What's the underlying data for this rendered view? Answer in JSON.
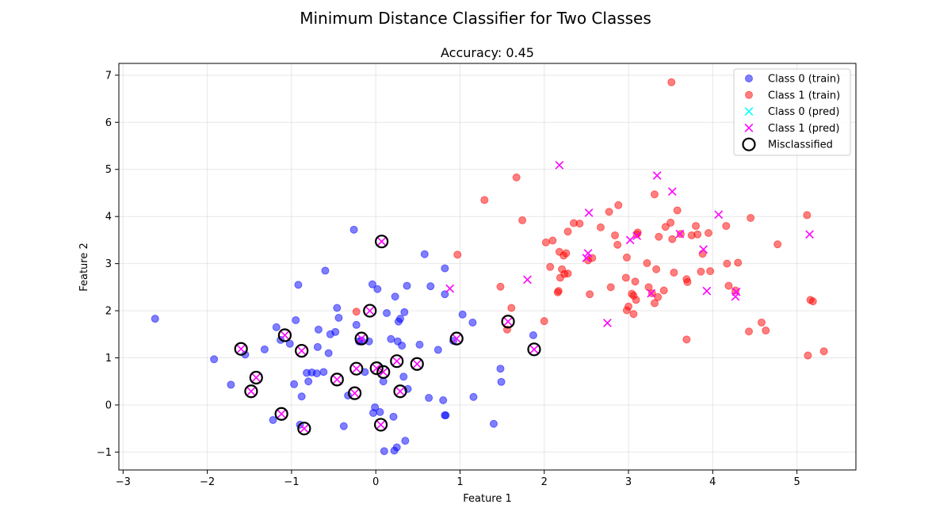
{
  "chart_data": {
    "type": "scatter",
    "title": "Minimum Distance Classifier for Two Classes",
    "subtitle": "Accuracy: 0.45",
    "xlabel": "Feature 1",
    "ylabel": "Feature 2",
    "xlim": [
      -3.05,
      5.7
    ],
    "ylim": [
      -1.38,
      7.25
    ],
    "xticks": [
      -3,
      -2,
      -1,
      0,
      1,
      2,
      3,
      4,
      5
    ],
    "yticks": [
      -1,
      0,
      1,
      2,
      3,
      4,
      5,
      6,
      7
    ],
    "grid": true,
    "legend_position": "top-right",
    "legend": [
      {
        "label": "Class 0 (train)",
        "marker": "circle",
        "color": "#0000ff"
      },
      {
        "label": "Class 1 (train)",
        "marker": "circle",
        "color": "#ff0000"
      },
      {
        "label": "Class 0 (pred)",
        "marker": "x",
        "color": "#00ffff"
      },
      {
        "label": "Class 1 (pred)",
        "marker": "x",
        "color": "#ff00ff"
      },
      {
        "label": "Misclassified",
        "marker": "ring",
        "color": "#000000"
      }
    ],
    "series": [
      {
        "name": "Class 0 (train)",
        "color": "#0000ff",
        "points": [
          [
            -2.62,
            1.83
          ],
          [
            -1.92,
            0.97
          ],
          [
            -1.72,
            0.43
          ],
          [
            -1.55,
            1.07
          ],
          [
            -1.32,
            1.18
          ],
          [
            -1.22,
            -0.32
          ],
          [
            -1.18,
            1.65
          ],
          [
            -1.13,
            1.38
          ],
          [
            -1.02,
            1.3
          ],
          [
            -0.97,
            0.44
          ],
          [
            -0.95,
            1.8
          ],
          [
            -0.92,
            2.55
          ],
          [
            -0.9,
            -0.42
          ],
          [
            -0.88,
            0.18
          ],
          [
            -0.82,
            0.68
          ],
          [
            -0.8,
            0.5
          ],
          [
            -0.76,
            0.69
          ],
          [
            -0.7,
            0.67
          ],
          [
            -0.69,
            1.23
          ],
          [
            -0.68,
            1.6
          ],
          [
            -0.62,
            0.7
          ],
          [
            -0.6,
            2.85
          ],
          [
            -0.56,
            1.1
          ],
          [
            -0.54,
            1.5
          ],
          [
            -0.48,
            1.55
          ],
          [
            -0.46,
            2.06
          ],
          [
            -0.44,
            1.85
          ],
          [
            -0.38,
            -0.45
          ],
          [
            -0.33,
            0.2
          ],
          [
            -0.26,
            3.72
          ],
          [
            -0.23,
            1.7
          ],
          [
            -0.2,
            1.35
          ],
          [
            -0.17,
            1.37
          ],
          [
            -0.13,
            0.7
          ],
          [
            -0.08,
            1.35
          ],
          [
            -0.04,
            2.56
          ],
          [
            -0.03,
            -0.17
          ],
          [
            -0.01,
            -0.05
          ],
          [
            0.02,
            2.46
          ],
          [
            0.05,
            -0.15
          ],
          [
            0.09,
            0.5
          ],
          [
            0.1,
            -0.98
          ],
          [
            0.13,
            1.95
          ],
          [
            0.18,
            1.4
          ],
          [
            0.21,
            -0.25
          ],
          [
            0.22,
            -0.97
          ],
          [
            0.23,
            2.3
          ],
          [
            0.25,
            -0.9
          ],
          [
            0.26,
            1.35
          ],
          [
            0.27,
            1.77
          ],
          [
            0.29,
            1.83
          ],
          [
            0.31,
            1.26
          ],
          [
            0.33,
            0.6
          ],
          [
            0.34,
            1.97
          ],
          [
            0.35,
            -0.76
          ],
          [
            0.37,
            2.53
          ],
          [
            0.38,
            0.34
          ],
          [
            0.52,
            1.28
          ],
          [
            0.58,
            3.2
          ],
          [
            0.63,
            0.15
          ],
          [
            0.65,
            2.52
          ],
          [
            0.74,
            1.17
          ],
          [
            0.8,
            0.1
          ],
          [
            0.82,
            2.9
          ],
          [
            0.82,
            2.35
          ],
          [
            0.82,
            -0.22
          ],
          [
            0.83,
            -0.22
          ],
          [
            0.92,
            1.36
          ],
          [
            1.03,
            1.92
          ],
          [
            1.15,
            1.75
          ],
          [
            1.16,
            0.17
          ],
          [
            1.4,
            -0.4
          ],
          [
            1.48,
            0.77
          ],
          [
            1.49,
            0.49
          ],
          [
            1.87,
            1.48
          ]
        ]
      },
      {
        "name": "Class 1 (train)",
        "color": "#ff0000",
        "points": [
          [
            -0.23,
            1.98
          ],
          [
            0.97,
            3.19
          ],
          [
            1.29,
            4.35
          ],
          [
            1.48,
            2.51
          ],
          [
            1.56,
            1.6
          ],
          [
            1.61,
            2.06
          ],
          [
            1.67,
            4.83
          ],
          [
            1.74,
            3.92
          ],
          [
            2.0,
            1.78
          ],
          [
            2.02,
            3.45
          ],
          [
            2.07,
            2.93
          ],
          [
            2.1,
            3.49
          ],
          [
            2.16,
            2.39
          ],
          [
            2.17,
            2.42
          ],
          [
            2.18,
            3.25
          ],
          [
            2.19,
            2.7
          ],
          [
            2.21,
            2.88
          ],
          [
            2.23,
            3.17
          ],
          [
            2.24,
            2.78
          ],
          [
            2.26,
            3.22
          ],
          [
            2.28,
            3.68
          ],
          [
            2.28,
            2.79
          ],
          [
            2.35,
            3.86
          ],
          [
            2.42,
            3.85
          ],
          [
            2.52,
            3.07
          ],
          [
            2.54,
            2.35
          ],
          [
            2.57,
            3.12
          ],
          [
            2.67,
            3.77
          ],
          [
            2.77,
            4.1
          ],
          [
            2.79,
            2.5
          ],
          [
            2.84,
            3.6
          ],
          [
            2.87,
            3.4
          ],
          [
            2.88,
            4.24
          ],
          [
            2.97,
            2.7
          ],
          [
            2.98,
            3.13
          ],
          [
            2.98,
            2.01
          ],
          [
            3.0,
            2.09
          ],
          [
            3.04,
            2.36
          ],
          [
            3.06,
            2.32
          ],
          [
            3.06,
            1.93
          ],
          [
            3.08,
            2.62
          ],
          [
            3.09,
            2.23
          ],
          [
            3.1,
            3.62
          ],
          [
            3.11,
            3.66
          ],
          [
            3.22,
            3.01
          ],
          [
            3.24,
            2.5
          ],
          [
            3.28,
            2.37
          ],
          [
            3.31,
            4.47
          ],
          [
            3.31,
            2.16
          ],
          [
            3.33,
            2.88
          ],
          [
            3.35,
            2.29
          ],
          [
            3.36,
            3.57
          ],
          [
            3.42,
            2.43
          ],
          [
            3.44,
            3.78
          ],
          [
            3.5,
            3.87
          ],
          [
            3.52,
            3.52
          ],
          [
            3.51,
            6.85
          ],
          [
            3.54,
            2.81
          ],
          [
            3.58,
            4.13
          ],
          [
            3.62,
            3.63
          ],
          [
            3.69,
            2.67
          ],
          [
            3.7,
            2.61
          ],
          [
            3.69,
            1.39
          ],
          [
            3.75,
            3.6
          ],
          [
            3.8,
            3.8
          ],
          [
            3.82,
            3.62
          ],
          [
            3.86,
            2.83
          ],
          [
            3.88,
            3.21
          ],
          [
            3.95,
            3.65
          ],
          [
            3.97,
            2.84
          ],
          [
            4.16,
            3.8
          ],
          [
            4.17,
            3.0
          ],
          [
            4.19,
            2.53
          ],
          [
            4.27,
            2.43
          ],
          [
            4.3,
            3.02
          ],
          [
            4.43,
            1.56
          ],
          [
            4.45,
            3.97
          ],
          [
            4.58,
            1.75
          ],
          [
            4.63,
            1.58
          ],
          [
            4.77,
            3.41
          ],
          [
            5.12,
            4.03
          ],
          [
            5.13,
            1.05
          ],
          [
            5.16,
            2.23
          ],
          [
            5.19,
            2.2
          ],
          [
            5.32,
            1.14
          ]
        ]
      },
      {
        "name": "Class 1 (pred)",
        "color": "#ff00ff",
        "points": [
          [
            -1.6,
            1.19
          ],
          [
            -1.48,
            0.29
          ],
          [
            -1.42,
            0.58
          ],
          [
            -1.12,
            -0.19
          ],
          [
            -1.08,
            1.48
          ],
          [
            -0.88,
            1.15
          ],
          [
            -0.85,
            -0.5
          ],
          [
            -0.46,
            0.54
          ],
          [
            -0.25,
            0.25
          ],
          [
            -0.23,
            0.77
          ],
          [
            -0.17,
            1.41
          ],
          [
            -0.07,
            2.0
          ],
          [
            0.01,
            0.78
          ],
          [
            0.06,
            -0.42
          ],
          [
            0.07,
            3.47
          ],
          [
            0.09,
            0.7
          ],
          [
            0.25,
            0.93
          ],
          [
            0.29,
            0.29
          ],
          [
            0.49,
            0.87
          ],
          [
            0.88,
            2.47
          ],
          [
            0.96,
            1.41
          ],
          [
            1.57,
            1.77
          ],
          [
            1.8,
            2.66
          ],
          [
            1.88,
            1.18
          ],
          [
            2.18,
            5.09
          ],
          [
            2.5,
            3.12
          ],
          [
            2.52,
            3.22
          ],
          [
            2.53,
            4.08
          ],
          [
            2.75,
            1.74
          ],
          [
            3.02,
            3.5
          ],
          [
            3.1,
            3.59
          ],
          [
            3.27,
            2.37
          ],
          [
            3.34,
            4.87
          ],
          [
            3.52,
            4.53
          ],
          [
            3.61,
            3.63
          ],
          [
            3.89,
            3.3
          ],
          [
            3.93,
            2.42
          ],
          [
            4.07,
            4.04
          ],
          [
            4.27,
            2.3
          ],
          [
            4.28,
            2.4
          ],
          [
            5.15,
            3.62
          ]
        ]
      },
      {
        "name": "Misclassified",
        "color": "#000000",
        "points": [
          [
            -1.6,
            1.19
          ],
          [
            -1.48,
            0.29
          ],
          [
            -1.42,
            0.58
          ],
          [
            -1.12,
            -0.19
          ],
          [
            -1.08,
            1.48
          ],
          [
            -0.88,
            1.15
          ],
          [
            -0.85,
            -0.5
          ],
          [
            -0.46,
            0.54
          ],
          [
            -0.25,
            0.25
          ],
          [
            -0.23,
            0.77
          ],
          [
            -0.17,
            1.41
          ],
          [
            -0.07,
            2.0
          ],
          [
            0.01,
            0.78
          ],
          [
            0.06,
            -0.42
          ],
          [
            0.07,
            3.47
          ],
          [
            0.09,
            0.7
          ],
          [
            0.25,
            0.93
          ],
          [
            0.29,
            0.29
          ],
          [
            0.49,
            0.87
          ],
          [
            0.96,
            1.41
          ],
          [
            1.57,
            1.77
          ],
          [
            1.88,
            1.18
          ]
        ]
      }
    ]
  }
}
